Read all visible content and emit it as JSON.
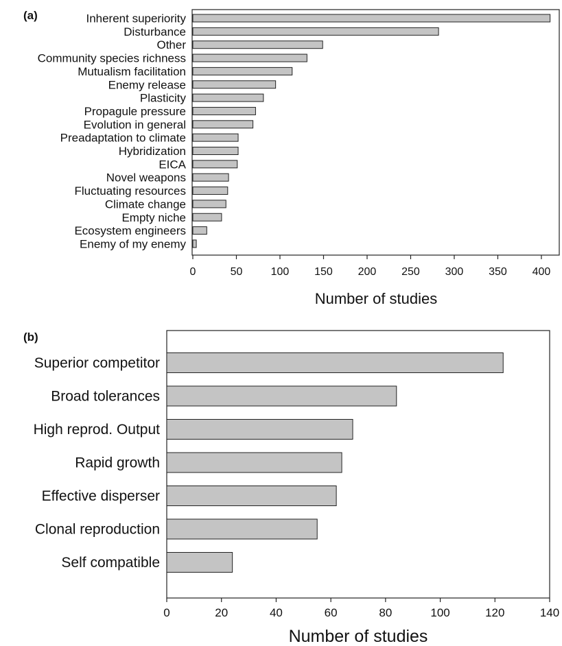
{
  "chart_data": [
    {
      "type": "bar",
      "orientation": "horizontal",
      "panel_label": "(a)",
      "categories": [
        "Inherent superiority",
        "Disturbance",
        "Other",
        "Community species richness",
        "Mutualism facilitation",
        "Enemy release",
        "Plasticity",
        "Propagule pressure",
        "Evolution in general",
        "Preadaptation to climate",
        "Hybridization",
        "EICA",
        "Novel weapons",
        "Fluctuating resources",
        "Climate change",
        "Empty niche",
        "Ecosystem engineers",
        "Enemy of my enemy"
      ],
      "values": [
        410,
        282,
        149,
        131,
        114,
        95,
        81,
        72,
        69,
        52,
        52,
        51,
        41,
        40,
        38,
        33,
        16,
        4
      ],
      "xlabel": "Number of studies",
      "ylabel": "",
      "xlim": [
        0,
        415
      ],
      "xticks": [
        0,
        50,
        100,
        150,
        200,
        250,
        300,
        350,
        400
      ],
      "grid": false,
      "legend": "none"
    },
    {
      "type": "bar",
      "orientation": "horizontal",
      "panel_label": "(b)",
      "categories": [
        "Superior competitor",
        "Broad tolerances",
        "High reprod. Output",
        "Rapid growth",
        "Effective disperser",
        "Clonal reproduction",
        "Self compatible"
      ],
      "values": [
        123,
        84,
        68,
        64,
        62,
        55,
        24
      ],
      "xlabel": "Number of studies",
      "ylabel": "",
      "xlim": [
        0,
        140
      ],
      "xticks": [
        0,
        20,
        40,
        60,
        80,
        100,
        120,
        140
      ],
      "grid": false,
      "legend": "none"
    }
  ]
}
